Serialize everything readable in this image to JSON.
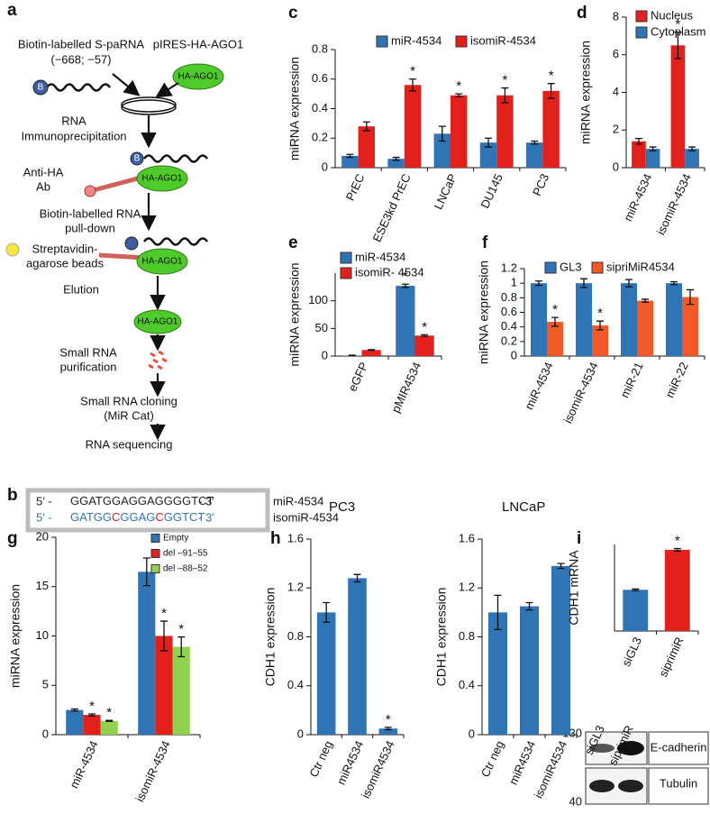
{
  "diagram": {
    "panel": "a",
    "protein": "HA-AGO1",
    "biotin": "B",
    "labels": [
      "Biotin-labelled S-paRNA",
      "(−668; −57)",
      "pIRES-HA-AGO1",
      "RNA",
      "Immunoprecipitation",
      "Anti-HA",
      "Ab",
      "Biotin-labelled RNA",
      "pull-down",
      "Streptavidin-",
      "agarose beads",
      "Elution",
      "Small RNA",
      "purification",
      "Small RNA cloning",
      "(MiR Cat)",
      "RNA sequencing"
    ]
  },
  "sequences": {
    "panel": "b",
    "rows": [
      {
        "start": "5′ -",
        "segments": [
          {
            "text": "GGATGGAGGAGGGGTCT",
            "color": "#222222"
          }
        ],
        "end": "- 3′",
        "name": "miR-4534",
        "color": "#222222"
      },
      {
        "start": "5′ -",
        "segments": [
          {
            "text": "GATGG",
            "color": "#2f75b5"
          },
          {
            "text": "C",
            "color": "#e3211c"
          },
          {
            "text": "GGAG",
            "color": "#2f75b5"
          },
          {
            "text": "C",
            "color": "#e3211c"
          },
          {
            "text": "GGTCT",
            "color": "#2f75b5"
          }
        ],
        "end": "- 3′",
        "name": "isomiR-4534",
        "color": "#2f75b5"
      }
    ]
  },
  "blot": {
    "lanes": [
      "siGL3",
      "siprimiR"
    ],
    "rows": [
      {
        "marker": "130",
        "name": "E-cadherin"
      },
      {
        "marker": "40",
        "name": "Tubulin"
      }
    ]
  },
  "chart_data": [
    {
      "type": "bar",
      "panel": "c",
      "ylabel": "miRNA expression",
      "categories": [
        "PrEC",
        "ESE3kd PrEC",
        "LNCaP",
        "DU145",
        "PC3"
      ],
      "series": [
        {
          "name": "miR-4534",
          "color": "#2f75b5",
          "values": [
            0.08,
            0.06,
            0.23,
            0.17,
            0.17
          ],
          "errors": [
            0.01,
            0.01,
            0.05,
            0.03,
            0.01
          ]
        },
        {
          "name": "isomiR-4534",
          "color": "#e3211c",
          "values": [
            0.28,
            0.56,
            0.49,
            0.49,
            0.52
          ],
          "errors": [
            0.03,
            0.04,
            0.01,
            0.05,
            0.05
          ],
          "markers": [
            null,
            "*",
            "*",
            "*",
            "*"
          ]
        }
      ],
      "ylim": [
        0,
        0.8
      ],
      "yticks": [
        0,
        0.2,
        0.4,
        0.6,
        0.8
      ]
    },
    {
      "type": "bar",
      "panel": "d",
      "ylabel": "miRNA expression",
      "categories": [
        "miR-4534",
        "isomiR-4534"
      ],
      "series": [
        {
          "name": "Nucleus",
          "color": "#e3211c",
          "values": [
            1.4,
            6.5
          ],
          "errors": [
            0.15,
            0.7
          ],
          "markers": [
            null,
            "*"
          ]
        },
        {
          "name": "Cytoplasm",
          "color": "#2f75b5",
          "values": [
            1.0,
            1.0
          ],
          "errors": [
            0.1,
            0.1
          ]
        }
      ],
      "ylim": [
        0,
        8
      ],
      "yticks": [
        0,
        2,
        4,
        6,
        8
      ]
    },
    {
      "type": "bar",
      "panel": "e",
      "ylabel": "miRNA expression",
      "categories": [
        "eGFP",
        "pMIR4534"
      ],
      "series": [
        {
          "name": "miR-4534",
          "color": "#2f75b5",
          "values": [
            1,
            127
          ],
          "errors": [
            0.5,
            3
          ],
          "markers": [
            null,
            "*"
          ]
        },
        {
          "name": "isomiR- 4534",
          "color": "#e3211c",
          "values": [
            11,
            37
          ],
          "errors": [
            0.5,
            1.5
          ],
          "markers": [
            null,
            "*"
          ]
        }
      ],
      "ylim": [
        0,
        150
      ],
      "yticks": [
        0,
        50,
        100
      ]
    },
    {
      "type": "bar",
      "panel": "f",
      "ylabel": "miRNA expression",
      "categories": [
        "miR-4534",
        "isomiR-4534",
        "miR-21",
        "miR-22"
      ],
      "series": [
        {
          "name": "GL3",
          "color": "#2f75b5",
          "values": [
            1,
            1,
            1,
            1
          ],
          "errors": [
            0.03,
            0.06,
            0.05,
            0.02
          ]
        },
        {
          "name": "sipriMiR4534",
          "color": "#f05a28",
          "values": [
            0.47,
            0.42,
            0.76,
            0.81
          ],
          "errors": [
            0.06,
            0.06,
            0.02,
            0.1
          ],
          "markers": [
            "*",
            "*",
            null,
            null
          ]
        }
      ],
      "ylim": [
        0,
        1.2
      ],
      "yticks": [
        0,
        0.2,
        0.4,
        0.6,
        0.8,
        1,
        1.2
      ]
    },
    {
      "type": "bar",
      "panel": "g",
      "ylabel": "miRNA expression",
      "categories": [
        "miR-4534",
        "isomiR-4534"
      ],
      "series": [
        {
          "name": "Empty",
          "color": "#2f75b5",
          "values": [
            2.5,
            16.5
          ],
          "errors": [
            0.1,
            1.4
          ]
        },
        {
          "name": "del –91–55",
          "color": "#e3211c",
          "values": [
            2.0,
            10.0
          ],
          "errors": [
            0.1,
            1.5
          ],
          "markers": [
            "*",
            "*"
          ]
        },
        {
          "name": "del –88–52",
          "color": "#92d050",
          "values": [
            1.4,
            8.9
          ],
          "errors": [
            0.05,
            1.0
          ],
          "markers": [
            "*",
            "*"
          ]
        }
      ],
      "ylim": [
        0,
        20
      ],
      "yticks": [
        0,
        5,
        10,
        15,
        20
      ]
    },
    {
      "type": "bar",
      "panel": "h",
      "title": "PC3",
      "ylabel": "CDH1 expression",
      "categories": [
        "Ctr neg",
        "miR4534",
        "isomiR4534"
      ],
      "series": [
        {
          "color": "#2f75b5",
          "values": [
            1.0,
            1.28,
            0.05
          ],
          "errors": [
            0.08,
            0.03,
            0.01
          ],
          "markers": [
            null,
            null,
            "*"
          ]
        }
      ],
      "ylim": [
        0,
        1.6
      ],
      "yticks": [
        0,
        0.4,
        0.8,
        1.2,
        1.6
      ]
    },
    {
      "type": "bar",
      "title": "LNCaP",
      "ylabel": "CDH1 expression",
      "categories": [
        "Ctr neg",
        "miR4534",
        "isomiR4534"
      ],
      "series": [
        {
          "color": "#2f75b5",
          "values": [
            1.0,
            1.05,
            1.38
          ],
          "errors": [
            0.14,
            0.03,
            0.02
          ]
        }
      ],
      "ylim": [
        0,
        1.6
      ],
      "yticks": [
        0,
        0.4,
        0.8,
        1.2,
        1.6
      ]
    },
    {
      "type": "bar",
      "panel": "i",
      "ylabel": "CDH1 mRNA",
      "categories": [
        "siGL3",
        "siprimiR"
      ],
      "series": [
        {
          "colors": [
            "#2f75b5",
            "#e3211c"
          ],
          "values": [
            1.0,
            1.97
          ],
          "errors": [
            0.02,
            0.03
          ],
          "markers": [
            null,
            "*"
          ]
        }
      ],
      "ylim": [
        0,
        2.1
      ]
    }
  ]
}
